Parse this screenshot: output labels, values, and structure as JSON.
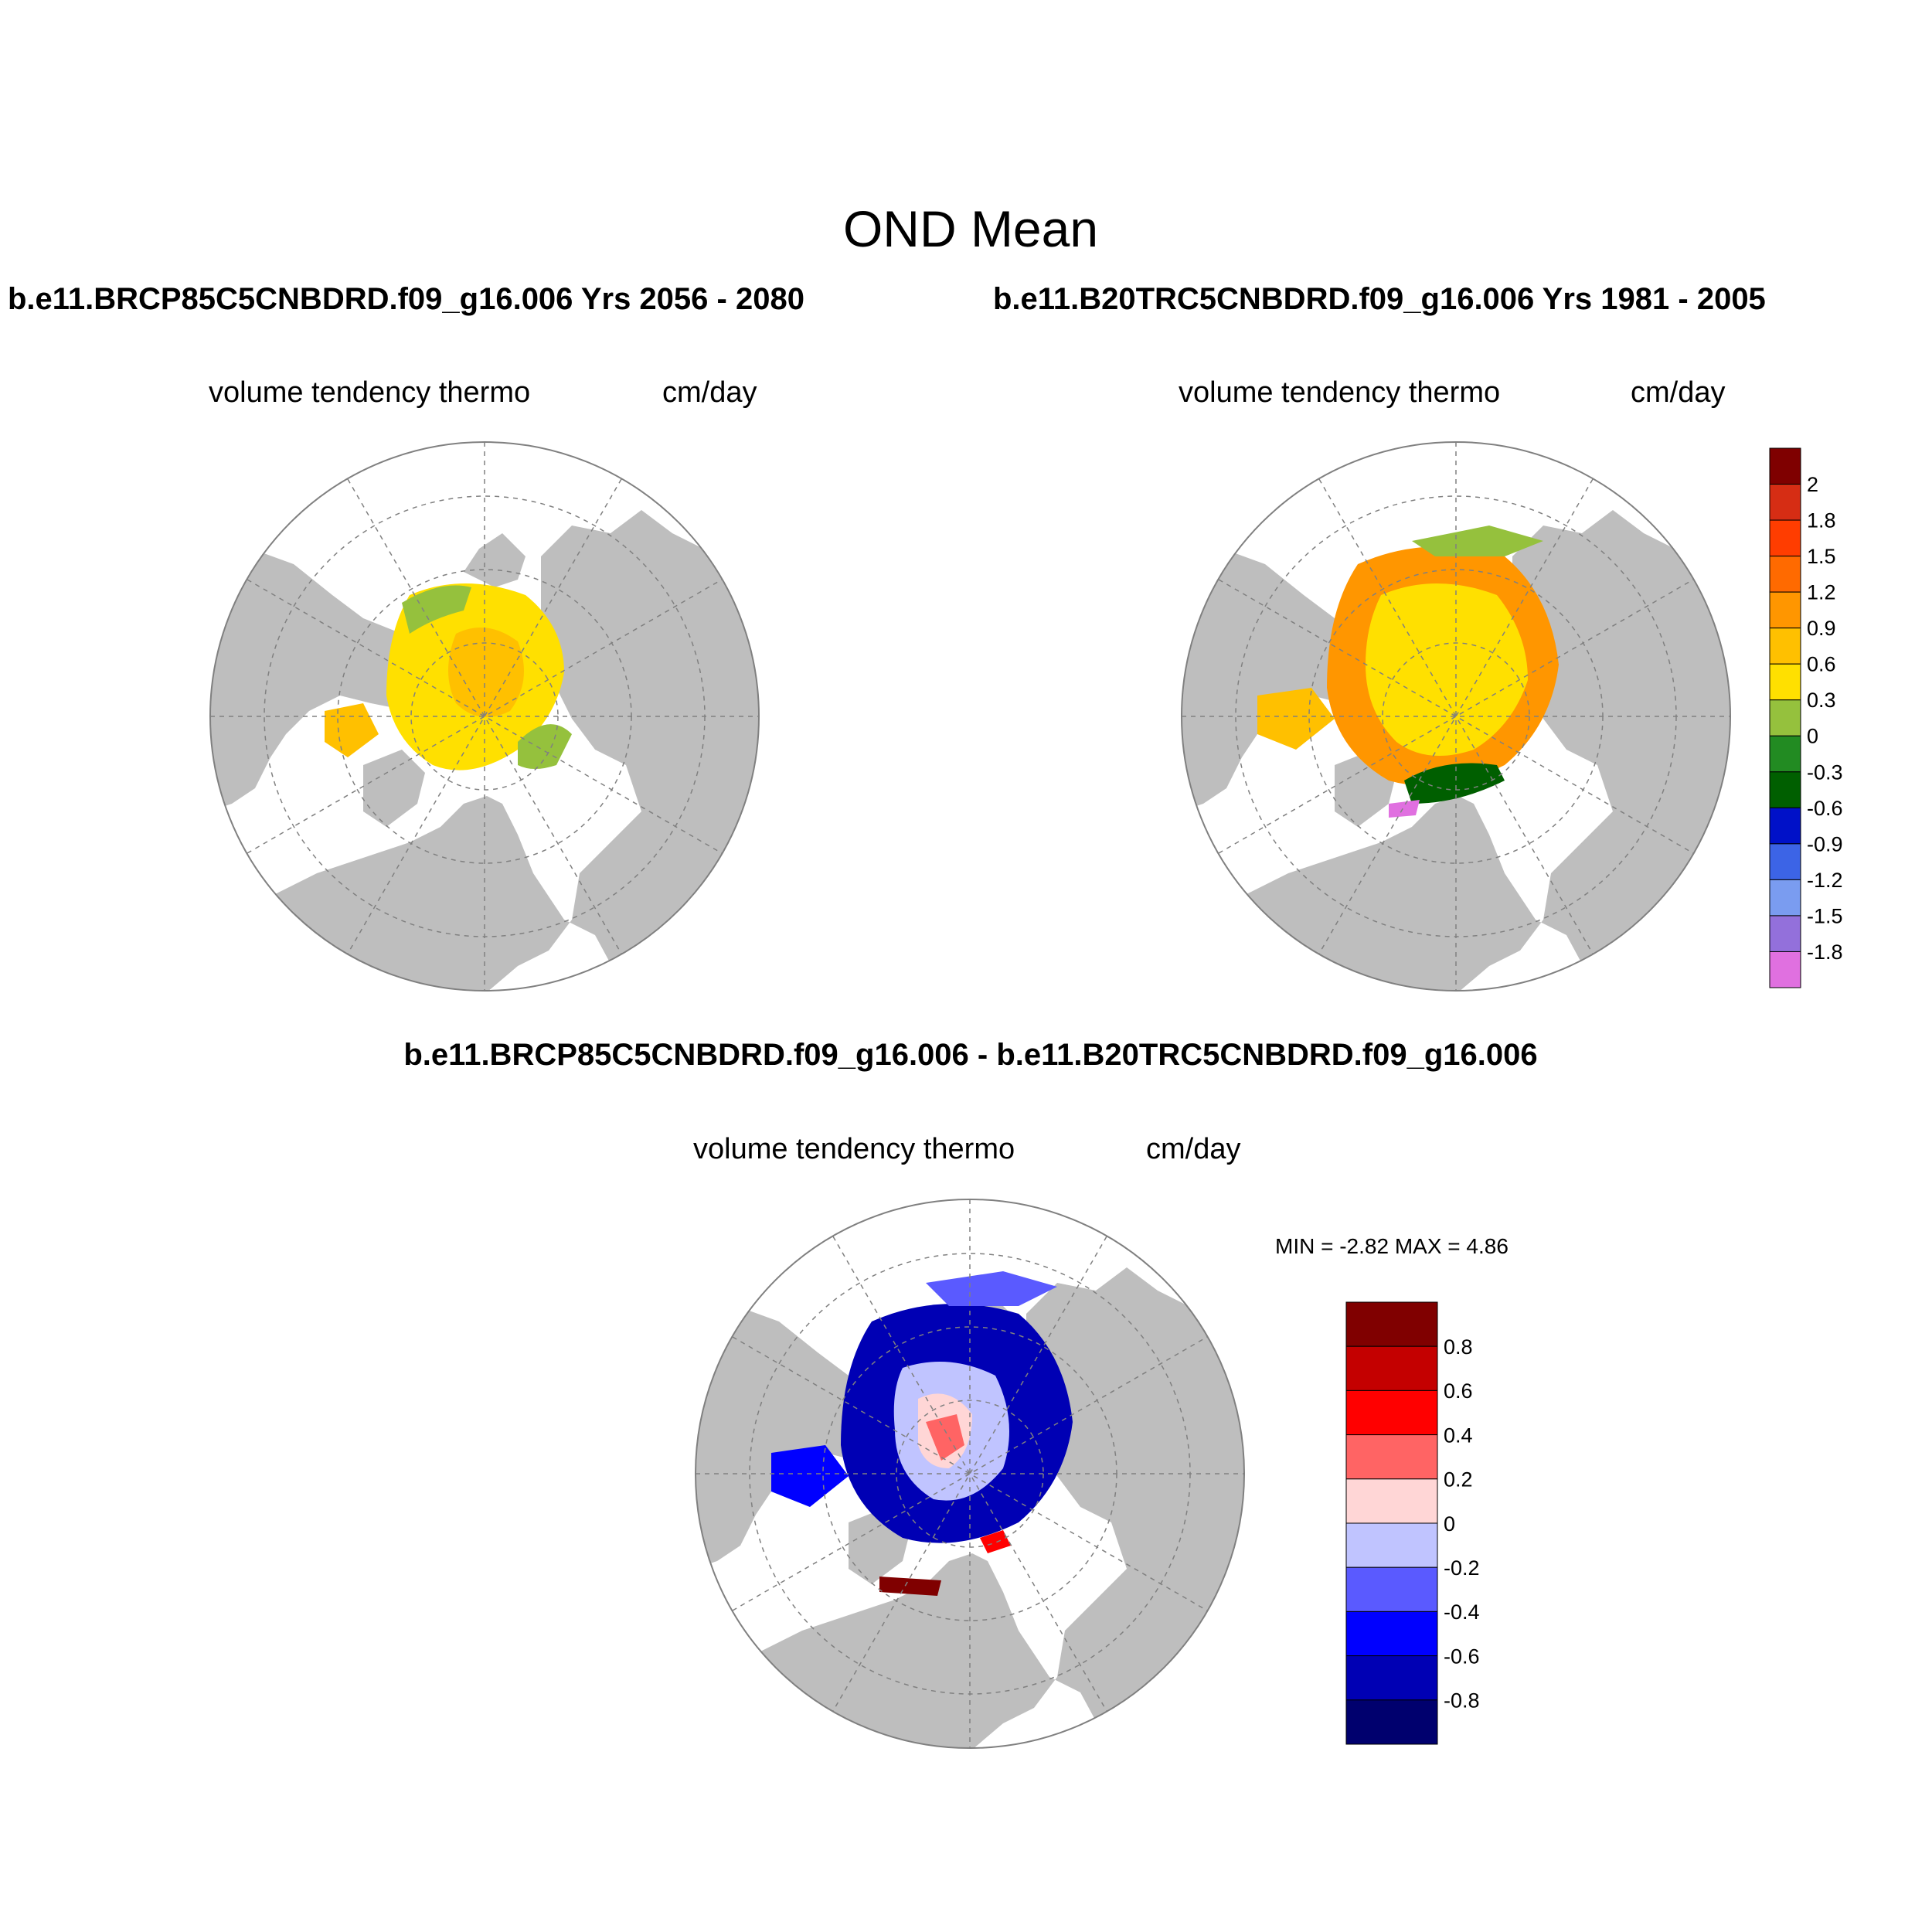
{
  "title": "OND Mean",
  "diff_title": "b.e11.BRCP85C5CNBDRD.f09_g16.006 - b.e11.B20TRC5CNBDRD.f09_g16.006",
  "panels": [
    {
      "case": "b.e11.BRCP85C5CNBDRD.f09_g16.006  Yrs 2056 - 2080",
      "variable": "volume tendency thermo",
      "units": "cm/day"
    },
    {
      "case": "b.e11.B20TRC5CNBDRD.f09_g16.006  Yrs 1981 - 2005",
      "variable": "volume tendency thermo",
      "units": "cm/day"
    },
    {
      "variable": "volume tendency thermo",
      "units": "cm/day",
      "min_label": "MIN =  -2.82 MAX =   4.86"
    }
  ],
  "colorbar_main": {
    "labels": [
      "2",
      "1.8",
      "1.5",
      "1.2",
      "0.9",
      "0.6",
      "0.3",
      "0",
      "-0.3",
      "-0.6",
      "-0.9",
      "-1.2",
      "-1.5",
      "-1.8"
    ],
    "colors": [
      "#7f0000",
      "#d62d14",
      "#ff3d00",
      "#ff6a00",
      "#ff9600",
      "#ffc000",
      "#ffe000",
      "#95c13d",
      "#228b22",
      "#005f00",
      "#0011c8",
      "#3c64e6",
      "#7a9cf0",
      "#9370db",
      "#e070e0"
    ]
  },
  "colorbar_diff": {
    "labels": [
      "0.8",
      "0.6",
      "0.4",
      "0.2",
      "0",
      "-0.2",
      "-0.4",
      "-0.6",
      "-0.8"
    ],
    "colors": [
      "#800000",
      "#c40000",
      "#ff0000",
      "#ff6464",
      "#ffd6d6",
      "#c0c4ff",
      "#5a5aff",
      "#0000ff",
      "#0000b4",
      "#00006e"
    ]
  },
  "map_colors": {
    "land": "#bebebe",
    "ocean": "#ffffff"
  }
}
